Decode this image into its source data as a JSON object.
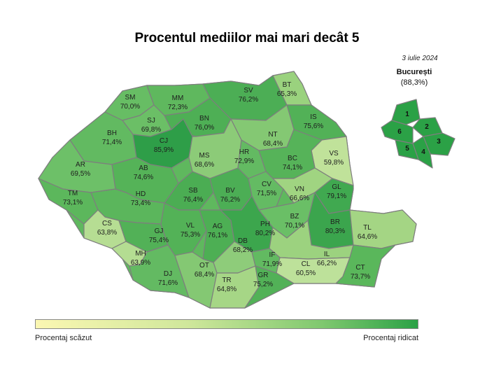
{
  "title": "Procentul mediilor mai mari decât 5",
  "date": "3 iulie 2024",
  "bucharest": {
    "name": "București",
    "value": "(88,3%)",
    "sectors": [
      "1",
      "2",
      "3",
      "4",
      "5",
      "6"
    ]
  },
  "legend": {
    "low_label": "Procentaj scăzut",
    "high_label": "Procentaj ridicat",
    "low_color": "#fbf7b2",
    "high_color": "#2ba146"
  },
  "counties": [
    {
      "code": "SM",
      "value": "70,0%"
    },
    {
      "code": "MM",
      "value": "72,3%"
    },
    {
      "code": "SV",
      "value": "76,2%"
    },
    {
      "code": "BT",
      "value": "65,3%"
    },
    {
      "code": "SJ",
      "value": "69,8%"
    },
    {
      "code": "BN",
      "value": "76,0%"
    },
    {
      "code": "IS",
      "value": "75,6%"
    },
    {
      "code": "BH",
      "value": "71,4%"
    },
    {
      "code": "CJ",
      "value": "85,9%"
    },
    {
      "code": "NT",
      "value": "68,4%"
    },
    {
      "code": "MS",
      "value": "68,6%"
    },
    {
      "code": "HR",
      "value": "72,9%"
    },
    {
      "code": "VS",
      "value": "59,8%"
    },
    {
      "code": "BC",
      "value": "74,1%"
    },
    {
      "code": "AR",
      "value": "69,5%"
    },
    {
      "code": "AB",
      "value": "74,6%"
    },
    {
      "code": "CV",
      "value": "71,5%"
    },
    {
      "code": "VN",
      "value": "66,6%"
    },
    {
      "code": "GL",
      "value": "79,1%"
    },
    {
      "code": "TM",
      "value": "73,1%"
    },
    {
      "code": "HD",
      "value": "73,4%"
    },
    {
      "code": "SB",
      "value": "76,4%"
    },
    {
      "code": "BV",
      "value": "76,2%"
    },
    {
      "code": "BZ",
      "value": "70,1%"
    },
    {
      "code": "CS",
      "value": "63,8%"
    },
    {
      "code": "GJ",
      "value": "75,4%"
    },
    {
      "code": "VL",
      "value": "75,3%"
    },
    {
      "code": "AG",
      "value": "76,1%"
    },
    {
      "code": "PH",
      "value": "80,2%"
    },
    {
      "code": "BR",
      "value": "80,3%"
    },
    {
      "code": "TL",
      "value": "64,6%"
    },
    {
      "code": "DB",
      "value": "68,2%"
    },
    {
      "code": "MH",
      "value": "63,9%"
    },
    {
      "code": "IL",
      "value": "66,2%"
    },
    {
      "code": "IF",
      "value": "71,9%"
    },
    {
      "code": "DJ",
      "value": "71,6%"
    },
    {
      "code": "OT",
      "value": "68,4%"
    },
    {
      "code": "CL",
      "value": "60,5%"
    },
    {
      "code": "TR",
      "value": "64,8%"
    },
    {
      "code": "GR",
      "value": "75,2%"
    },
    {
      "code": "CT",
      "value": "73,7%"
    }
  ]
}
